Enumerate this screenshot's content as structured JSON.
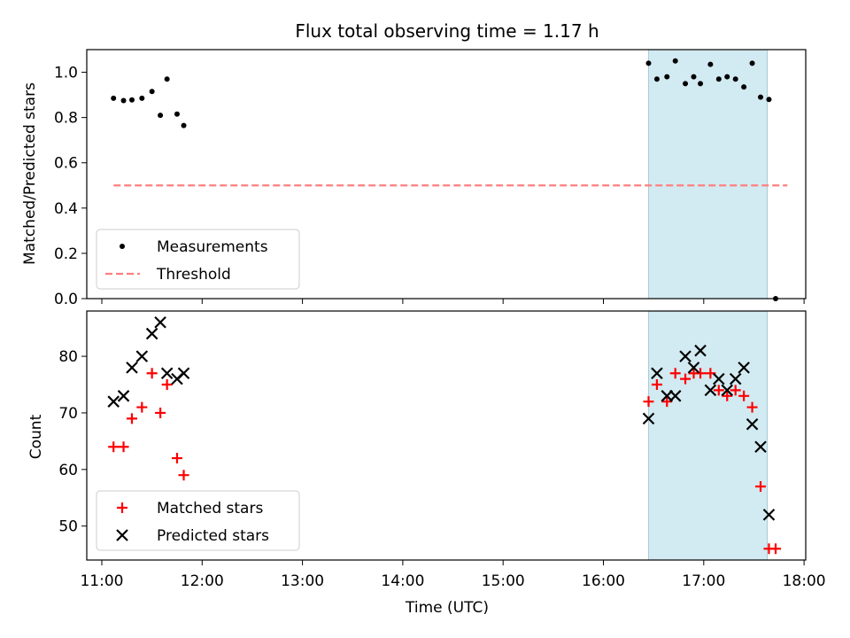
{
  "chart_data": {
    "title": "Flux total observing time = 1.17 h",
    "xlabel": "Time (UTC)",
    "x_ticks": [
      "11:00",
      "12:00",
      "13:00",
      "14:00",
      "15:00",
      "16:00",
      "17:00",
      "18:00"
    ],
    "xlim": [
      "10:51",
      "18:01"
    ],
    "highlight_span": {
      "start": "16:27",
      "end": "17:38",
      "color": "#add8e6"
    },
    "panels": [
      {
        "type": "scatter",
        "ylabel": "Matched/Predicted stars",
        "ylim": [
          0,
          1.1
        ],
        "y_ticks": [
          "0.0",
          "0.2",
          "0.4",
          "0.6",
          "0.8",
          "1.0"
        ],
        "legend_position": "lower-left",
        "series": [
          {
            "name": "Measurements",
            "marker": "dot",
            "color": "#000000",
            "points": [
              [
                "11:07",
                0.885
              ],
              [
                "11:13",
                0.875
              ],
              [
                "11:18",
                0.878
              ],
              [
                "11:24",
                0.885
              ],
              [
                "11:30",
                0.915
              ],
              [
                "11:35",
                0.81
              ],
              [
                "11:39",
                0.97
              ],
              [
                "11:45",
                0.815
              ],
              [
                "11:49",
                0.765
              ],
              [
                "16:27",
                1.04
              ],
              [
                "16:32",
                0.97
              ],
              [
                "16:38",
                0.98
              ],
              [
                "16:43",
                1.05
              ],
              [
                "16:49",
                0.95
              ],
              [
                "16:54",
                0.98
              ],
              [
                "16:58",
                0.95
              ],
              [
                "17:04",
                1.035
              ],
              [
                "17:09",
                0.97
              ],
              [
                "17:14",
                0.98
              ],
              [
                "17:19",
                0.97
              ],
              [
                "17:24",
                0.935
              ],
              [
                "17:29",
                1.04
              ],
              [
                "17:34",
                0.89
              ],
              [
                "17:39",
                0.88
              ],
              [
                "17:43",
                0.0
              ]
            ]
          },
          {
            "name": "Threshold",
            "type": "line",
            "dashed": true,
            "color": "#ff7f7f",
            "points": [
              [
                "11:07",
                0.5
              ],
              [
                "17:50",
                0.5
              ]
            ]
          }
        ]
      },
      {
        "type": "scatter",
        "ylabel": "Count",
        "ylim": [
          44,
          88
        ],
        "y_ticks": [
          "50",
          "60",
          "70",
          "80"
        ],
        "legend_position": "lower-left",
        "series": [
          {
            "name": "Matched stars",
            "marker": "plus",
            "color": "#ff0000",
            "points": [
              [
                "11:07",
                64
              ],
              [
                "11:13",
                64
              ],
              [
                "11:18",
                69
              ],
              [
                "11:24",
                71
              ],
              [
                "11:30",
                77
              ],
              [
                "11:35",
                70
              ],
              [
                "11:39",
                75
              ],
              [
                "11:45",
                62
              ],
              [
                "11:49",
                59
              ],
              [
                "16:27",
                72
              ],
              [
                "16:32",
                75
              ],
              [
                "16:38",
                72
              ],
              [
                "16:43",
                77
              ],
              [
                "16:49",
                76
              ],
              [
                "16:54",
                77
              ],
              [
                "16:58",
                77
              ],
              [
                "17:04",
                77
              ],
              [
                "17:09",
                74
              ],
              [
                "17:14",
                73
              ],
              [
                "17:19",
                74
              ],
              [
                "17:24",
                73
              ],
              [
                "17:29",
                71
              ],
              [
                "17:34",
                57
              ],
              [
                "17:39",
                46
              ],
              [
                "17:43",
                46
              ]
            ]
          },
          {
            "name": "Predicted stars",
            "marker": "x",
            "color": "#000000",
            "points": [
              [
                "11:07",
                72
              ],
              [
                "11:13",
                73
              ],
              [
                "11:18",
                78
              ],
              [
                "11:24",
                80
              ],
              [
                "11:30",
                84
              ],
              [
                "11:35",
                86
              ],
              [
                "11:39",
                77
              ],
              [
                "11:45",
                76
              ],
              [
                "11:49",
                77
              ],
              [
                "16:27",
                69
              ],
              [
                "16:32",
                77
              ],
              [
                "16:38",
                73
              ],
              [
                "16:43",
                73
              ],
              [
                "16:49",
                80
              ],
              [
                "16:54",
                78
              ],
              [
                "16:58",
                81
              ],
              [
                "17:04",
                74
              ],
              [
                "17:09",
                76
              ],
              [
                "17:14",
                74
              ],
              [
                "17:19",
                76
              ],
              [
                "17:24",
                78
              ],
              [
                "17:29",
                68
              ],
              [
                "17:34",
                64
              ],
              [
                "17:39",
                52
              ]
            ]
          }
        ]
      }
    ]
  }
}
